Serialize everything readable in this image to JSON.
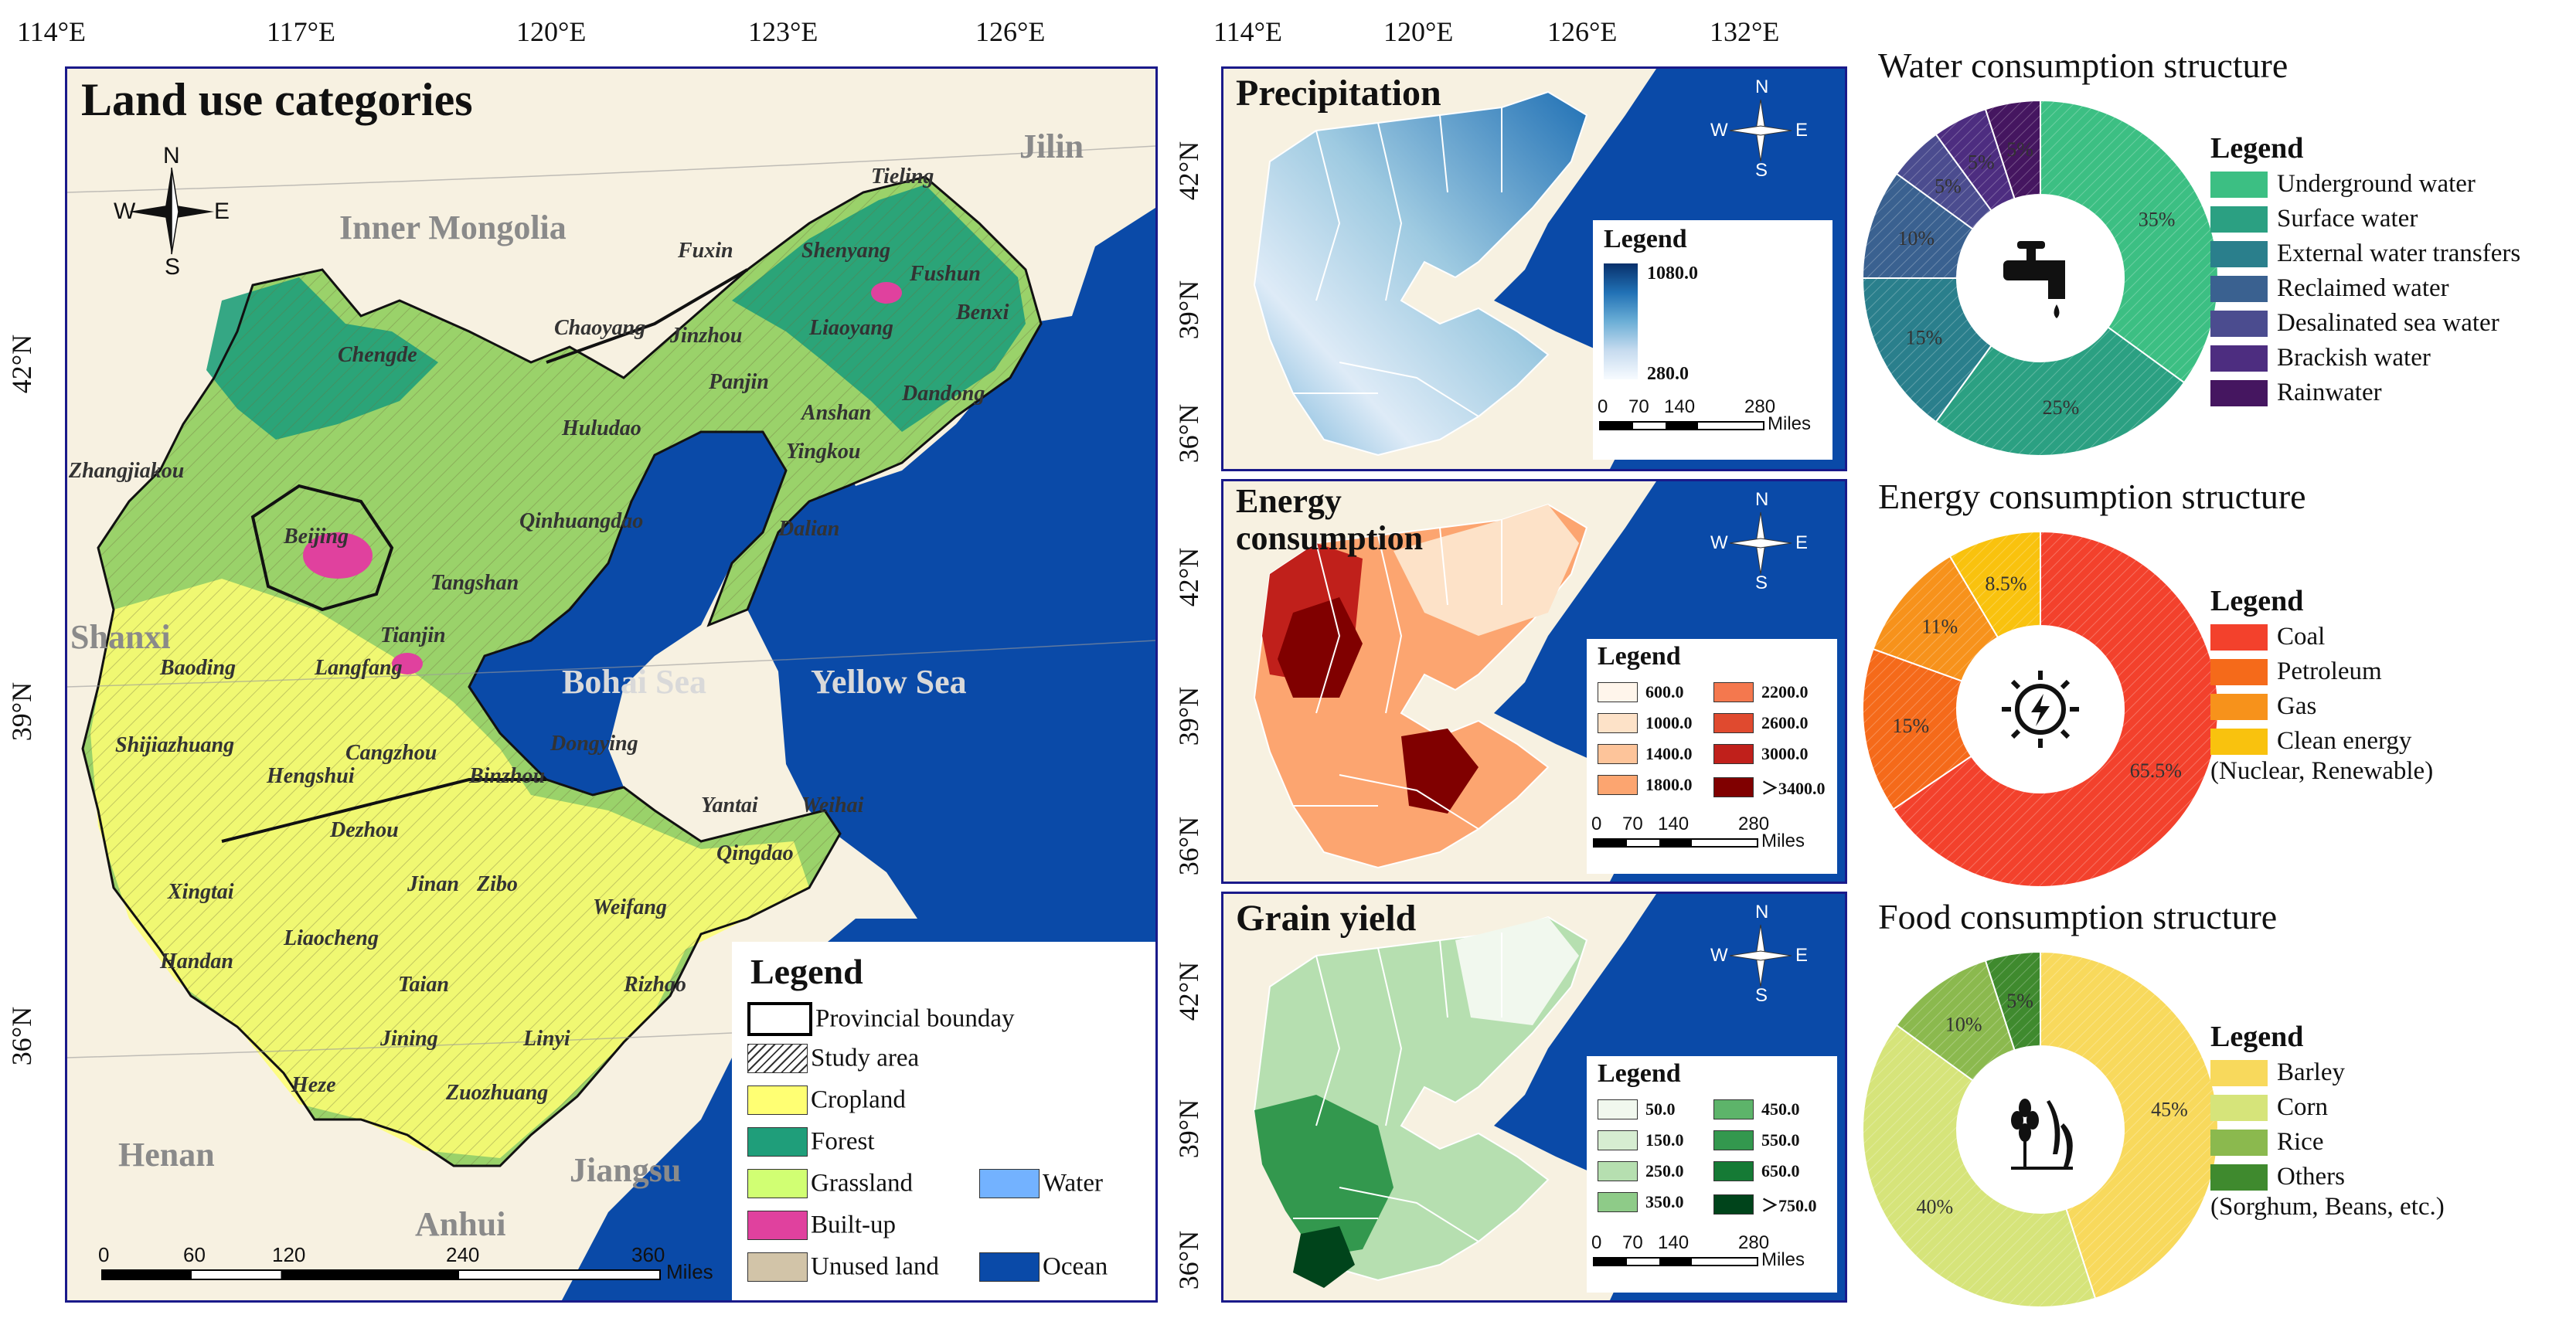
{
  "main_map": {
    "top_ticks": [
      "114°E",
      "117°E",
      "120°E",
      "123°E",
      "126°E"
    ],
    "left_ticks": [
      "42°N",
      "39°N",
      "36°N"
    ],
    "title": "Land use categories",
    "compass": {
      "n": "N",
      "s": "S",
      "e": "E",
      "w": "W"
    },
    "regions": [
      "Inner Mongolia",
      "Jilin",
      "Shanxi",
      "Henan",
      "Anhui",
      "Jiangsu"
    ],
    "seas": [
      "Bohai Sea",
      "Yellow Sea"
    ],
    "cities": [
      "Tieling",
      "Fuxin",
      "Shenyang",
      "Fushun",
      "Benxi",
      "Chaoyang",
      "Jinzhou",
      "Liaoyang",
      "Chengde",
      "Panjin",
      "Dandong",
      "Huludao",
      "Anshan",
      "Yingkou",
      "Zhangjiakou",
      "Qinhuangdao",
      "Beijing",
      "Tangshan",
      "Dalian",
      "Tianjin",
      "Langfang",
      "Baoding",
      "Cangzhou",
      "Dongying",
      "Yantai",
      "Weihai",
      "Shijiazhuang",
      "Hengshui",
      "Binzhou",
      "Dezhou",
      "Qingdao",
      "Xingtai",
      "Jinan",
      "Zibo",
      "Weifang",
      "Handan",
      "Liaocheng",
      "Taian",
      "Rizhao",
      "Jining",
      "Linyi",
      "Heze",
      "Zuozhuang"
    ],
    "legend": {
      "title": "Legend",
      "items": [
        {
          "label": "Provincial bounday",
          "type": "boundary"
        },
        {
          "label": "Study area",
          "type": "hatch"
        },
        {
          "label": "Cropland",
          "color": "#ffff73"
        },
        {
          "label": "Forest",
          "color": "#1f9e7a"
        },
        {
          "label": "Grassland",
          "color": "#d1ff73"
        },
        {
          "label": "Water",
          "color": "#73b2ff"
        },
        {
          "label": "Built-up",
          "color": "#e0419e"
        },
        {
          "label": "Unused land",
          "color": "#d2c4a8"
        },
        {
          "label": "Ocean",
          "color": "#0a4aa8"
        }
      ]
    },
    "scale": {
      "ticks": [
        "0",
        "60",
        "120",
        "240",
        "360"
      ],
      "unit": "Miles"
    }
  },
  "small_maps": {
    "top_ticks": [
      "114°E",
      "120°E",
      "126°E",
      "132°E"
    ],
    "left_ticks": [
      "42°N",
      "39°N",
      "36°N"
    ],
    "scale": {
      "ticks": [
        "0",
        "70",
        "140",
        "280"
      ],
      "unit": "Miles"
    },
    "precipitation": {
      "title": "Precipitation",
      "legend_title": "Legend",
      "max": "1080.0",
      "min": "280.0",
      "ramp": [
        "#08306b",
        "#2171b5",
        "#6baed6",
        "#c6dbef",
        "#f7fbff"
      ]
    },
    "energy": {
      "title_line1": "Energy",
      "title_line2": "consumption",
      "legend_title": "Legend",
      "classes": [
        {
          "label": "600.0",
          "color": "#fff5eb"
        },
        {
          "label": "1000.0",
          "color": "#fde2c8"
        },
        {
          "label": "1400.0",
          "color": "#fdc49a"
        },
        {
          "label": "1800.0",
          "color": "#fca570"
        },
        {
          "label": "2200.0",
          "color": "#f4784e"
        },
        {
          "label": "2600.0",
          "color": "#e04a2f"
        },
        {
          "label": "3000.0",
          "color": "#c0201b"
        },
        {
          "label": "＞3400.0",
          "color": "#800000"
        }
      ]
    },
    "grain": {
      "title": "Grain yield",
      "legend_title": "Legend",
      "classes": [
        {
          "label": "50.0",
          "color": "#f1f8ee"
        },
        {
          "label": "150.0",
          "color": "#d6edd1"
        },
        {
          "label": "250.0",
          "color": "#b6dfb0"
        },
        {
          "label": "350.0",
          "color": "#8ecb88"
        },
        {
          "label": "450.0",
          "color": "#5db46a"
        },
        {
          "label": "550.0",
          "color": "#33984e"
        },
        {
          "label": "650.0",
          "color": "#157a35"
        },
        {
          "label": "＞750.0",
          "color": "#00441b"
        }
      ]
    }
  },
  "chart_data": [
    {
      "type": "pie",
      "title": "Water consumption structure",
      "legend_title": "Legend",
      "slices": [
        {
          "label": "Underground water",
          "value": 35,
          "text": "35%",
          "color": "#3cbf83"
        },
        {
          "label": "Surface water",
          "value": 25,
          "text": "25%",
          "color": "#2ba082"
        },
        {
          "label": "External water transfers",
          "value": 15,
          "text": "15%",
          "color": "#2a7f8c"
        },
        {
          "label": "Reclaimed water",
          "value": 10,
          "text": "10%",
          "color": "#3a6190"
        },
        {
          "label": "Desalinated sea water",
          "value": 5,
          "text": "5%",
          "color": "#4b4c8f"
        },
        {
          "label": "Brackish water",
          "value": 5,
          "text": "5%",
          "color": "#4d2d80"
        },
        {
          "label": "Rainwater",
          "value": 5,
          "text": "5%",
          "color": "#451660"
        }
      ]
    },
    {
      "type": "pie",
      "title": "Energy consumption structure",
      "legend_title": "Legend",
      "slices": [
        {
          "label": "Coal",
          "value": 65.5,
          "text": "65.5%",
          "color": "#f3412c"
        },
        {
          "label": "Petroleum",
          "value": 15,
          "text": "15%",
          "color": "#f56a1a"
        },
        {
          "label": "Gas",
          "value": 11,
          "text": "11%",
          "color": "#f7921b"
        },
        {
          "label": "Clean energy",
          "label2": "(Nuclear, Renewable)",
          "value": 8.5,
          "text": "8.5%",
          "color": "#f9c20e"
        }
      ]
    },
    {
      "type": "pie",
      "title": "Food consumption structure",
      "legend_title": "Legend",
      "slices": [
        {
          "label": "Barley",
          "value": 45,
          "text": "45%",
          "color": "#f8d95c"
        },
        {
          "label": "Corn",
          "value": 40,
          "text": "40%",
          "color": "#d6e47a"
        },
        {
          "label": "Rice",
          "value": 10,
          "text": "10%",
          "color": "#8bb94e"
        },
        {
          "label": "Others",
          "label2": "(Sorghum, Beans, etc.)",
          "value": 5,
          "text": "5%",
          "color": "#3f8a2e"
        }
      ]
    }
  ]
}
